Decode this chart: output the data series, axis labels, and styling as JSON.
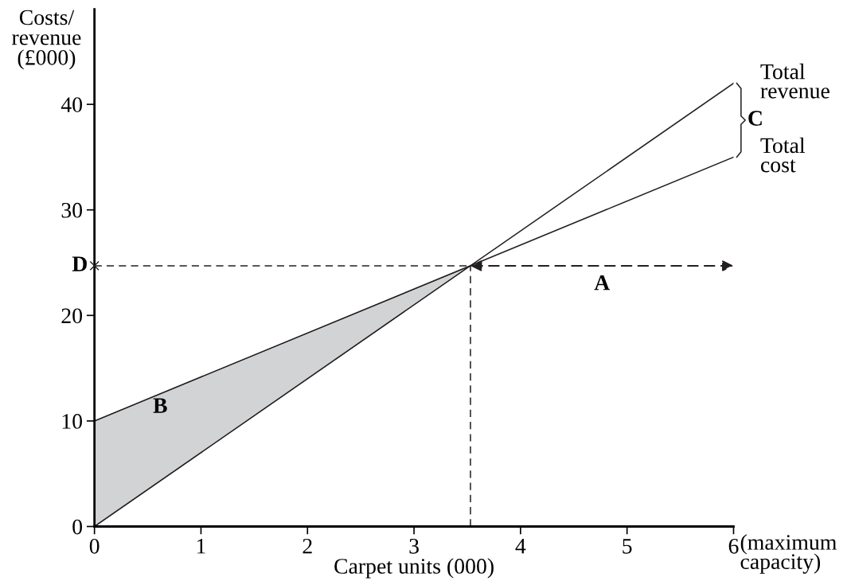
{
  "chart_data": {
    "type": "line",
    "xlabel": "Carpet units (000)",
    "ylabel": "Costs/\nrevenue\n(£000)",
    "xlim": [
      0,
      6
    ],
    "ylim": [
      0,
      49
    ],
    "xticks": [
      0,
      1,
      2,
      3,
      4,
      5,
      6
    ],
    "yticks": [
      0,
      10,
      20,
      30,
      40
    ],
    "grid": false,
    "marker": "none",
    "series": [
      {
        "name": "Total revenue",
        "color": "#231f20",
        "x": [
          0,
          6
        ],
        "values": [
          0,
          42
        ]
      },
      {
        "name": "Total cost",
        "color": "#231f20",
        "x": [
          0,
          6
        ],
        "values": [
          10,
          35
        ]
      },
      {
        "type": "area",
        "color": "#d1d3d4",
        "x": [
          0,
          3.53
        ],
        "values": [
          10,
          24.7
        ]
      },
      {
        "color": "#231f20",
        "line_style": "dashed",
        "x": [
          0,
          3.53
        ],
        "values": [
          24.7,
          24.7
        ]
      },
      {
        "color": "#231f20",
        "line_style": "dashed",
        "x": [
          3.53,
          3.53
        ],
        "values": [
          0,
          24.7
        ]
      },
      {
        "type": "scatter",
        "color": "#231f20",
        "marker": "cross",
        "x": [
          0
        ],
        "values": [
          24.7
        ]
      }
    ],
    "annotations": [
      "A",
      "B",
      "C",
      "D",
      "(maximum\ncapacity)"
    ]
  }
}
